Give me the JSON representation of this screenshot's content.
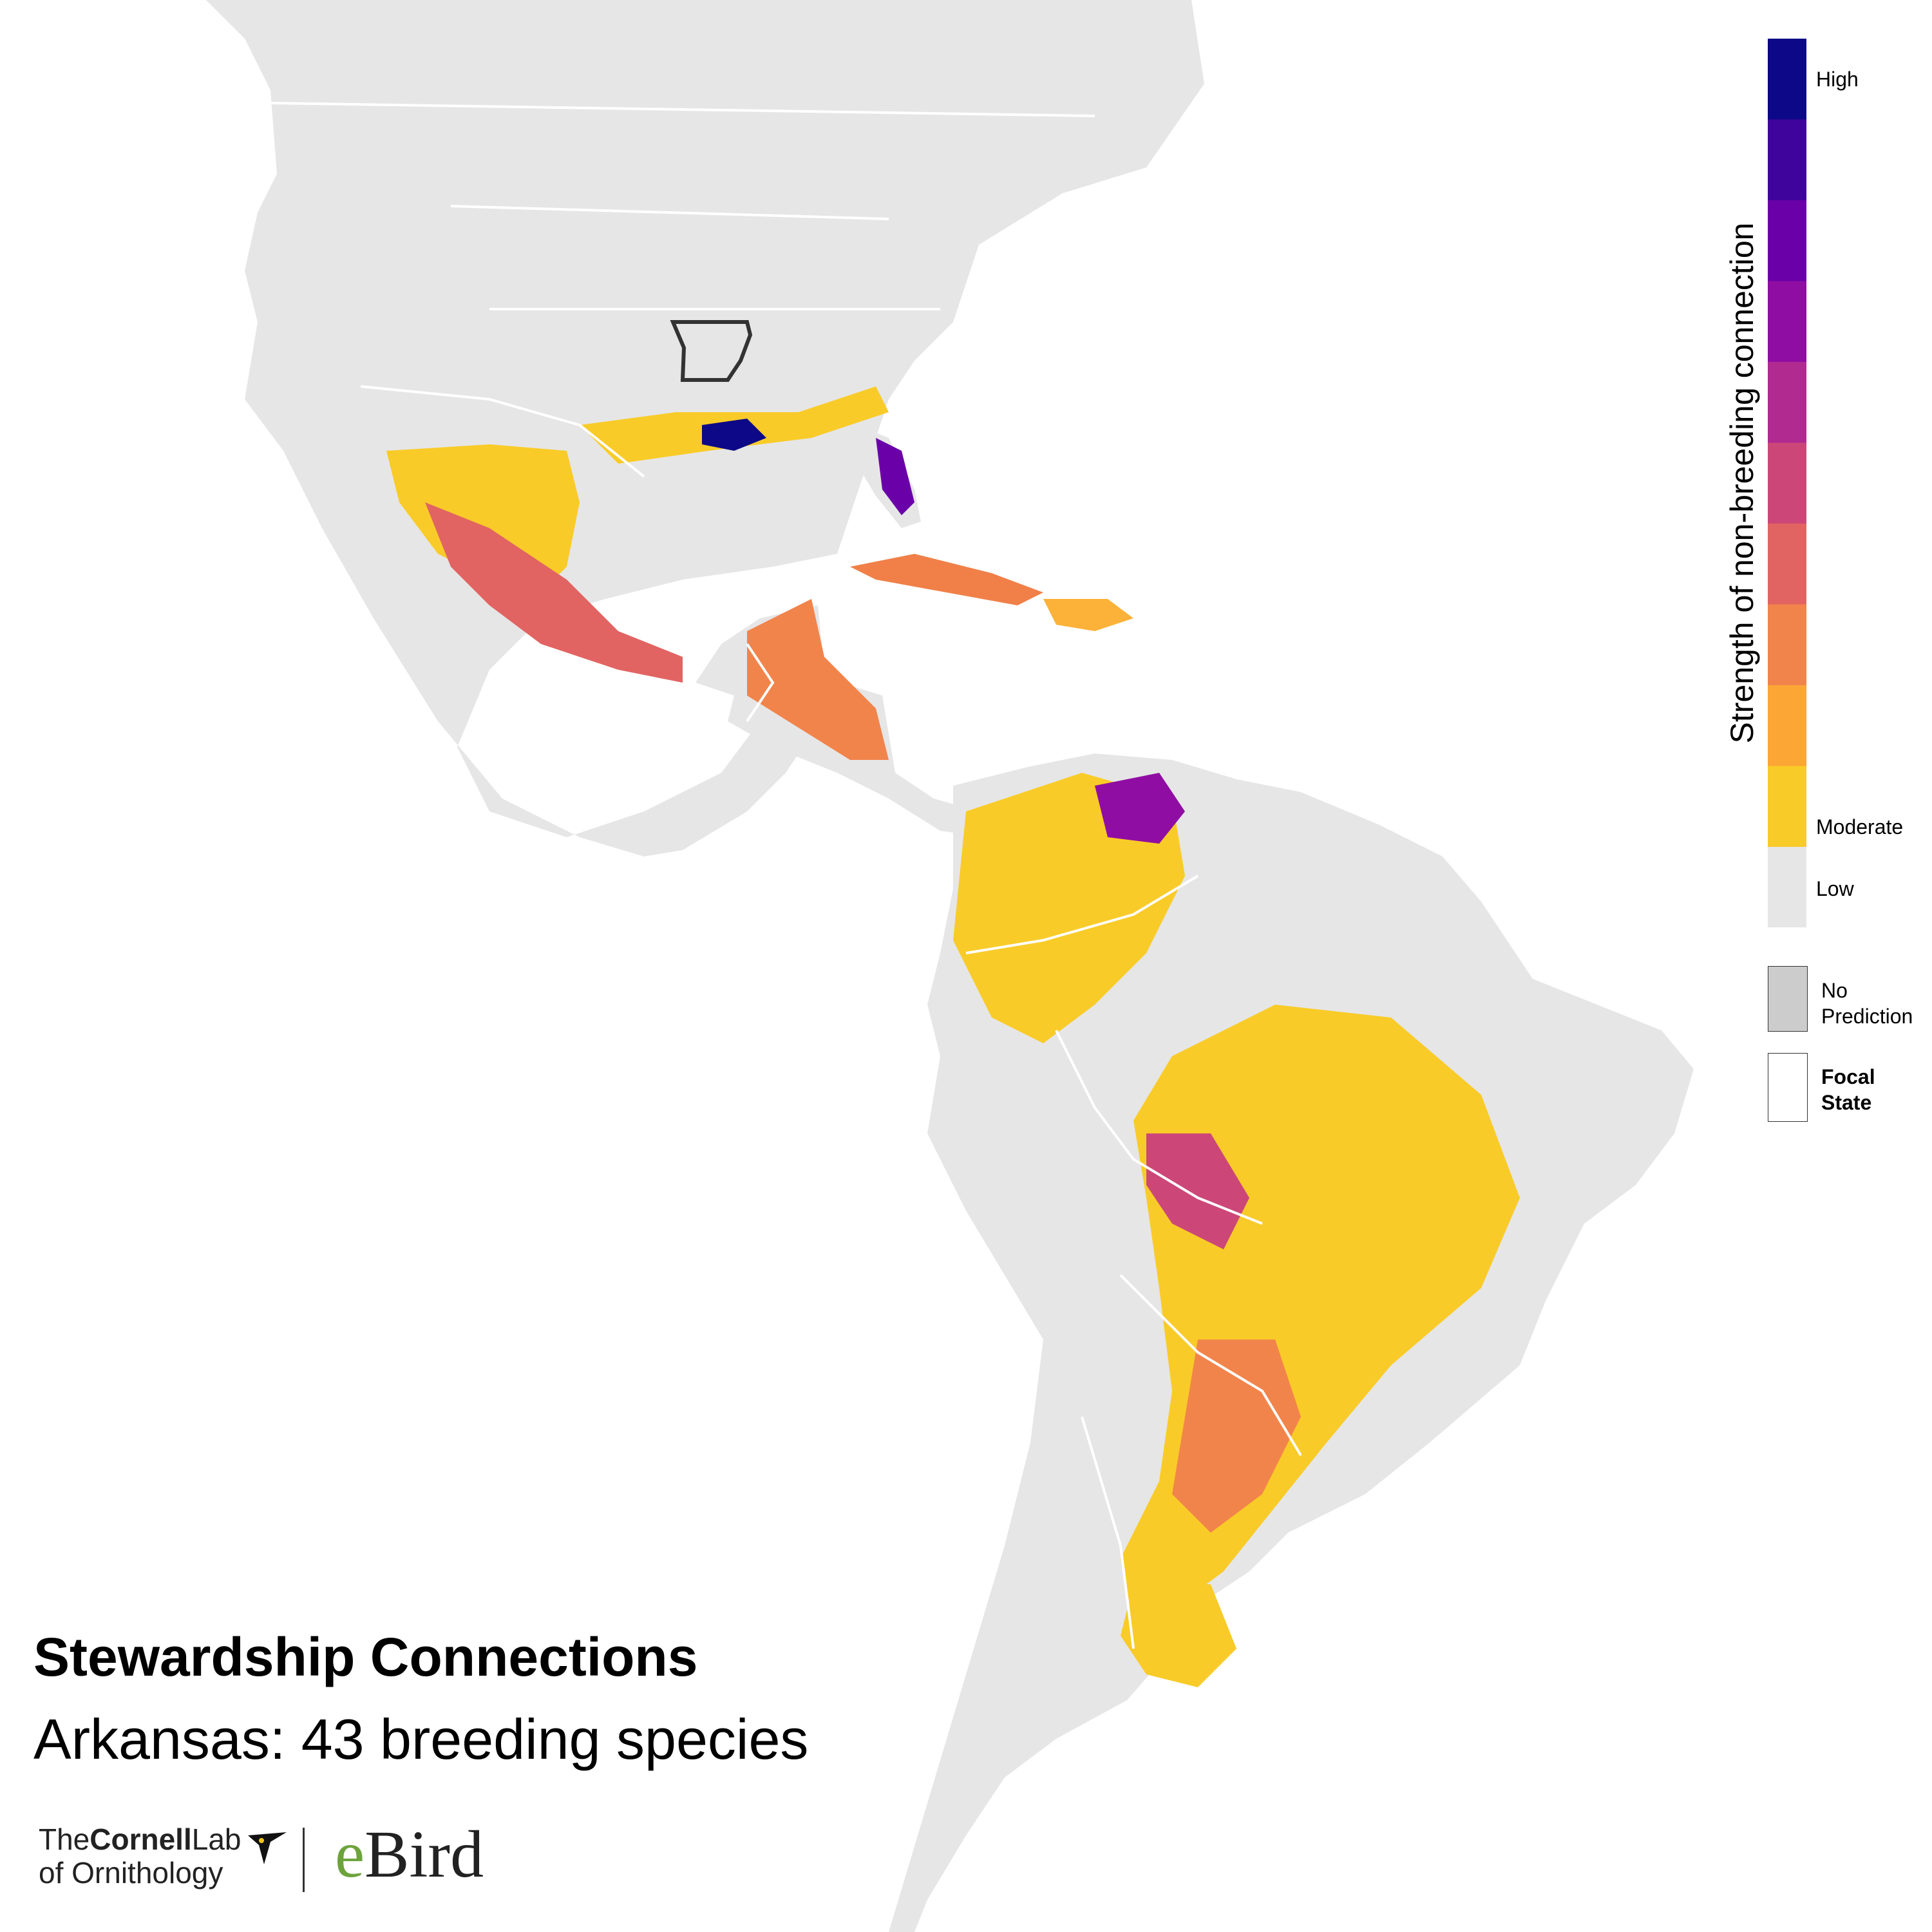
{
  "map": {
    "title": "Stewardship Connections",
    "subtitle": "Arkansas: 43 breeding species",
    "focal_state": "Arkansas"
  },
  "legend": {
    "axis_title": "Strength of non-breeding connection",
    "label_high": "High",
    "label_moderate": "Moderate",
    "label_low": "Low",
    "no_prediction_line1": "No",
    "no_prediction_line2": "Prediction",
    "focal_line1": "Focal",
    "focal_line2": "State",
    "scale_colors": [
      "#0d0887",
      "#3e049c",
      "#6a00a8",
      "#900da4",
      "#b12a90",
      "#cc4778",
      "#e16462",
      "#f1844b",
      "#fca636",
      "#f9cb28"
    ],
    "low_color": "#e6e6e6",
    "no_prediction_color": "#cccccc",
    "focal_color": "#ffffff"
  },
  "logos": {
    "cornell_the": "The",
    "cornell_name": "Cornell",
    "cornell_lab": "Lab",
    "cornell_line2": "of Ornithology",
    "ebird_e": "e",
    "ebird_rest": "Bird"
  },
  "colors": {
    "land": "#e6e6e6",
    "water": "#ffffff",
    "border": "#ffffff",
    "focal_outline": "#333333"
  }
}
